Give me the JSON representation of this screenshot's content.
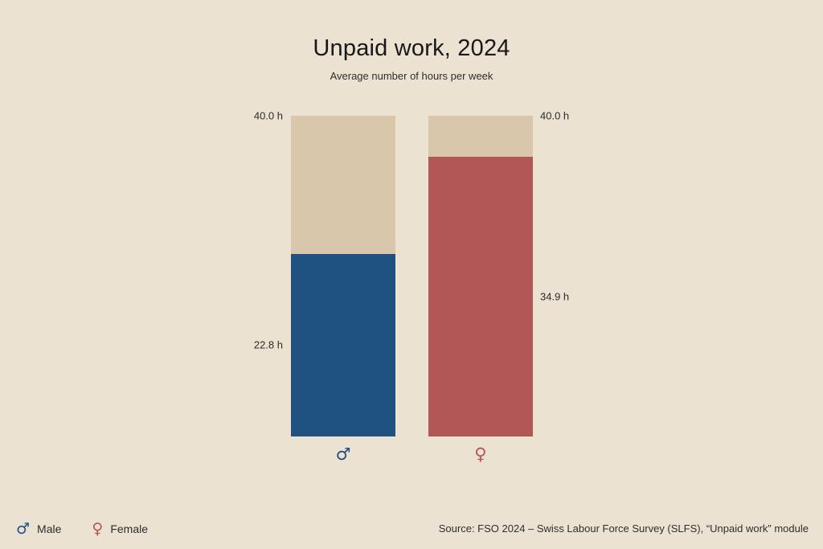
{
  "colors": {
    "background": "#ece2d2",
    "bar_background": "#d9c7ac",
    "male": "#1f5181",
    "female": "#b25656",
    "text": "#2b2b2b"
  },
  "chart_data": {
    "type": "bar",
    "title": "Unpaid work, 2024",
    "subtitle": "Average number of hours per week",
    "unit": "h",
    "max_value": 40.0,
    "categories": [
      "Male",
      "Female"
    ],
    "values": [
      22.8,
      34.9
    ],
    "series": [
      {
        "name": "Male",
        "value": 22.8,
        "max": 40.0,
        "color": "#1f5181",
        "symbol": "♂"
      },
      {
        "name": "Female",
        "value": 34.9,
        "max": 40.0,
        "color": "#b25656",
        "symbol": "♀"
      }
    ],
    "ylim": [
      0,
      40
    ],
    "grid": false,
    "legend_position": "bottom-left"
  },
  "labels": {
    "male_max": "40.0 h",
    "male_value": "22.8 h",
    "female_max": "40.0 h",
    "female_value": "34.9 h"
  },
  "axis": {
    "male_symbol": "♂",
    "female_symbol": "♀"
  },
  "legend": {
    "male_symbol": "♂",
    "male_label": "Male",
    "female_symbol": "♀",
    "female_label": "Female"
  },
  "footer": {
    "source": "Source: FSO 2024 – Swiss Labour Force Survey (SLFS), “Unpaid work” module"
  }
}
